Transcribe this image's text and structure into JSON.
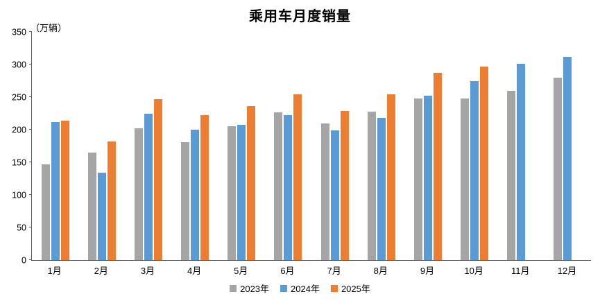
{
  "chart_data": {
    "type": "bar",
    "title": "乘用车月度销量",
    "ylabel": "（万辆）",
    "xlabel": "",
    "categories": [
      "1月",
      "2月",
      "3月",
      "4月",
      "5月",
      "6月",
      "7月",
      "8月",
      "9月",
      "10月",
      "11月",
      "12月"
    ],
    "series": [
      {
        "name": "2023年",
        "color": "#A5A5A5",
        "values": [
          147,
          165,
          202,
          181,
          205,
          227,
          210,
          228,
          248,
          248,
          260,
          280
        ]
      },
      {
        "name": "2024年",
        "color": "#5B9BD5",
        "values": [
          212,
          134,
          224,
          200,
          207,
          222,
          199,
          218,
          252,
          275,
          301,
          312
        ]
      },
      {
        "name": "2025年",
        "color": "#ED7D31",
        "values": [
          214,
          182,
          247,
          222,
          236,
          254,
          229,
          254,
          287,
          297,
          null,
          null
        ]
      }
    ],
    "ylim": [
      0,
      350
    ],
    "yticks": [
      0,
      50,
      100,
      150,
      200,
      250,
      300,
      350
    ],
    "grid": false,
    "legend_position": "bottom"
  }
}
